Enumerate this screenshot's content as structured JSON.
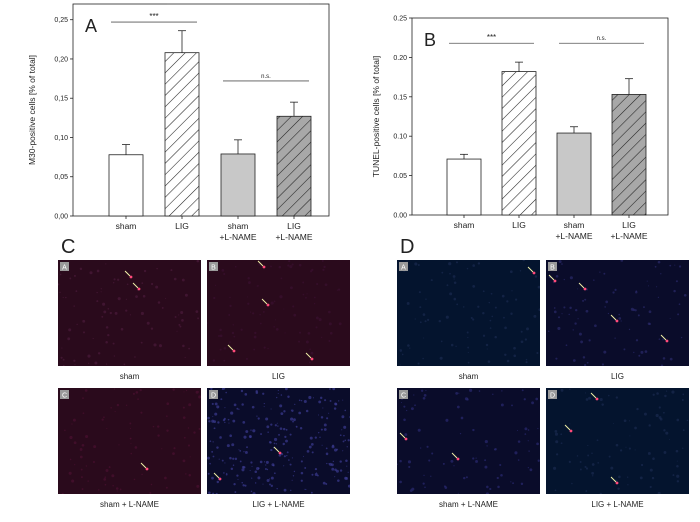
{
  "colors": {
    "bar_open": "#ffffff",
    "bar_gray": "#c8c8c8",
    "bar_dark": "#a8a8a8",
    "stroke": "#222222",
    "micro_red": "#2a0a1c",
    "micro_blue": "#0a0c2a",
    "micro_navy": "#04142e",
    "marker": "#f2f2a8"
  },
  "chart_data": [
    {
      "type": "bar",
      "panel": "A",
      "ylabel": "M30-positive cells [% of total]",
      "ylim": [
        0,
        0.27
      ],
      "yticks": [
        0.0,
        0.05,
        0.1,
        0.15,
        0.2,
        0.25
      ],
      "yticklabels": [
        "0,00",
        "0,05",
        "0,10",
        "0,15",
        "0,20",
        "0,25"
      ],
      "categories": [
        [
          "sham"
        ],
        [
          "LIG"
        ],
        [
          "sham",
          "+L-NAME"
        ],
        [
          "LIG",
          "+L-NAME"
        ]
      ],
      "values": [
        0.078,
        0.208,
        0.079,
        0.127
      ],
      "errors": [
        0.013,
        0.028,
        0.018,
        0.018
      ],
      "fills": [
        "open",
        "hatch-white",
        "gray",
        "hatch-gray"
      ],
      "annotations": [
        {
          "text": "***",
          "from": 0,
          "to": 1,
          "y": 0.247
        },
        {
          "text": "**",
          "from": 1,
          "to": 3,
          "y": 0.27
        },
        {
          "text": "n.s.",
          "from": 2,
          "to": 3,
          "y": 0.172
        }
      ]
    },
    {
      "type": "bar",
      "panel": "B",
      "ylabel": "TUNEL-positive cells [% of total]",
      "ylim": [
        0,
        0.25
      ],
      "yticks": [
        0.0,
        0.05,
        0.1,
        0.15,
        0.2,
        0.25
      ],
      "yticklabels": [
        "0.00",
        "0.05",
        "0.10",
        "0.15",
        "0.20",
        "0.25"
      ],
      "categories": [
        [
          "sham"
        ],
        [
          "LIG"
        ],
        [
          "sham",
          "+L-NAME"
        ],
        [
          "LIG",
          "+L-NAME"
        ]
      ],
      "values": [
        0.071,
        0.182,
        0.104,
        0.153
      ],
      "errors": [
        0.006,
        0.012,
        0.008,
        0.02
      ],
      "fills": [
        "open",
        "hatch-white",
        "gray",
        "hatch-gray"
      ],
      "annotations": [
        {
          "text": "***",
          "from": 0,
          "to": 1,
          "y": 0.218
        },
        {
          "text": "n.s.",
          "from": 2,
          "to": 3,
          "y": 0.218
        }
      ]
    }
  ],
  "panels": {
    "C": {
      "letter": "C",
      "tiles": [
        {
          "letter": "A",
          "caption": "sham"
        },
        {
          "letter": "B",
          "caption": "LIG"
        },
        {
          "letter": "C",
          "caption": "sham + L-NAME"
        },
        {
          "letter": "D",
          "caption": "LIG + L-NAME"
        }
      ]
    },
    "D": {
      "letter": "D",
      "tiles": [
        {
          "letter": "A",
          "caption": "sham"
        },
        {
          "letter": "B",
          "caption": "LIG"
        },
        {
          "letter": "C",
          "caption": "sham + L-NAME"
        },
        {
          "letter": "D",
          "caption": "LIG + L-NAME"
        }
      ]
    }
  }
}
